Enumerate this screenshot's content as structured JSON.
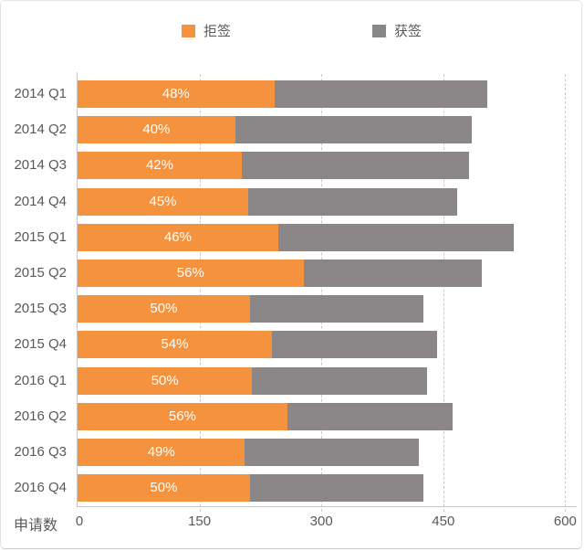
{
  "chart_data": {
    "type": "bar",
    "orientation": "horizontal",
    "stacked": true,
    "title": "",
    "xlabel": "申请数",
    "ylabel": "",
    "xlim": [
      0,
      600
    ],
    "x_ticks": [
      0,
      150,
      300,
      450,
      600
    ],
    "grid": "dashed-vertical",
    "legend_position": "top",
    "categories": [
      "2014 Q1",
      "2014 Q2",
      "2014 Q3",
      "2014 Q4",
      "2015 Q1",
      "2015 Q2",
      "2015 Q3",
      "2015 Q4",
      "2016 Q1",
      "2016 Q2",
      "2016 Q3",
      "2016 Q4"
    ],
    "series": [
      {
        "name": "拒签",
        "color": "#F5923E",
        "values": [
          242,
          194,
          202,
          210,
          247,
          278,
          212,
          239,
          215,
          258,
          206,
          212
        ],
        "labels": [
          "48%",
          "40%",
          "42%",
          "45%",
          "46%",
          "56%",
          "50%",
          "54%",
          "50%",
          "56%",
          "49%",
          "50%"
        ]
      },
      {
        "name": "获签",
        "color": "#8B8687",
        "values": [
          262,
          291,
          280,
          257,
          290,
          219,
          213,
          203,
          215,
          203,
          214,
          213
        ],
        "labels": []
      }
    ],
    "totals": [
      504,
      485,
      482,
      467,
      537,
      497,
      425,
      442,
      430,
      461,
      420,
      425
    ]
  },
  "colors": {
    "rejected": "#F5923E",
    "approved": "#8B8687",
    "axis_text": "#595959",
    "gridline": "#c9c9c9"
  }
}
